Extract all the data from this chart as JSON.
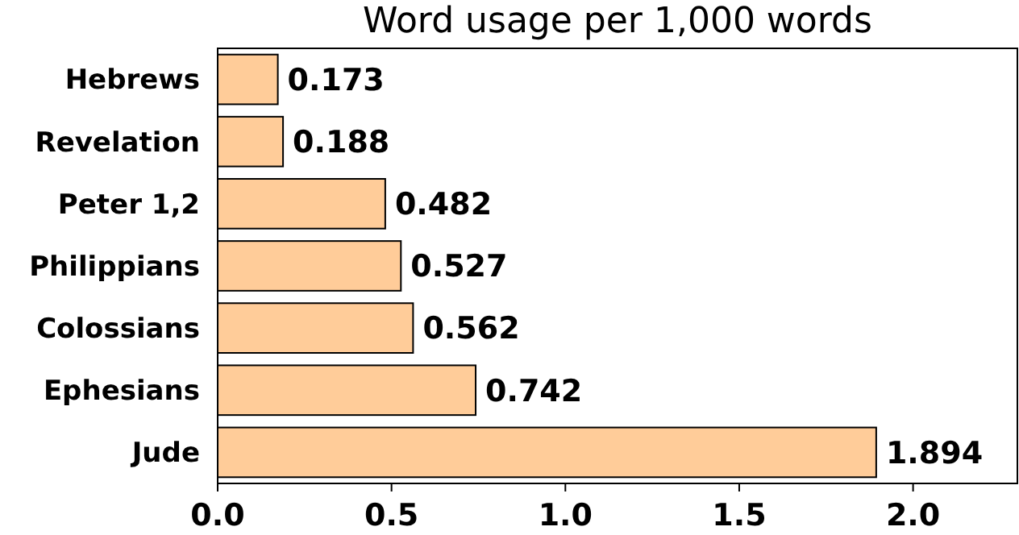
{
  "chart_data": {
    "type": "bar",
    "orientation": "horizontal",
    "title": "Word usage per 1,000 words",
    "categories": [
      "Hebrews",
      "Revelation",
      "Peter 1,2",
      "Philippians",
      "Colossians",
      "Ephesians",
      "Jude"
    ],
    "values": [
      0.173,
      0.188,
      0.482,
      0.527,
      0.562,
      0.742,
      1.894
    ],
    "color": "#ffcc99",
    "data_labels": true,
    "xlim": [
      0,
      2.3
    ],
    "xticks": [
      {
        "value": 0,
        "label": "0.0"
      },
      {
        "value": 0.5,
        "label": "0.5"
      },
      {
        "value": 1,
        "label": "1.0"
      },
      {
        "value": 1.5,
        "label": "1.5"
      },
      {
        "value": 2,
        "label": "2.0"
      }
    ]
  }
}
